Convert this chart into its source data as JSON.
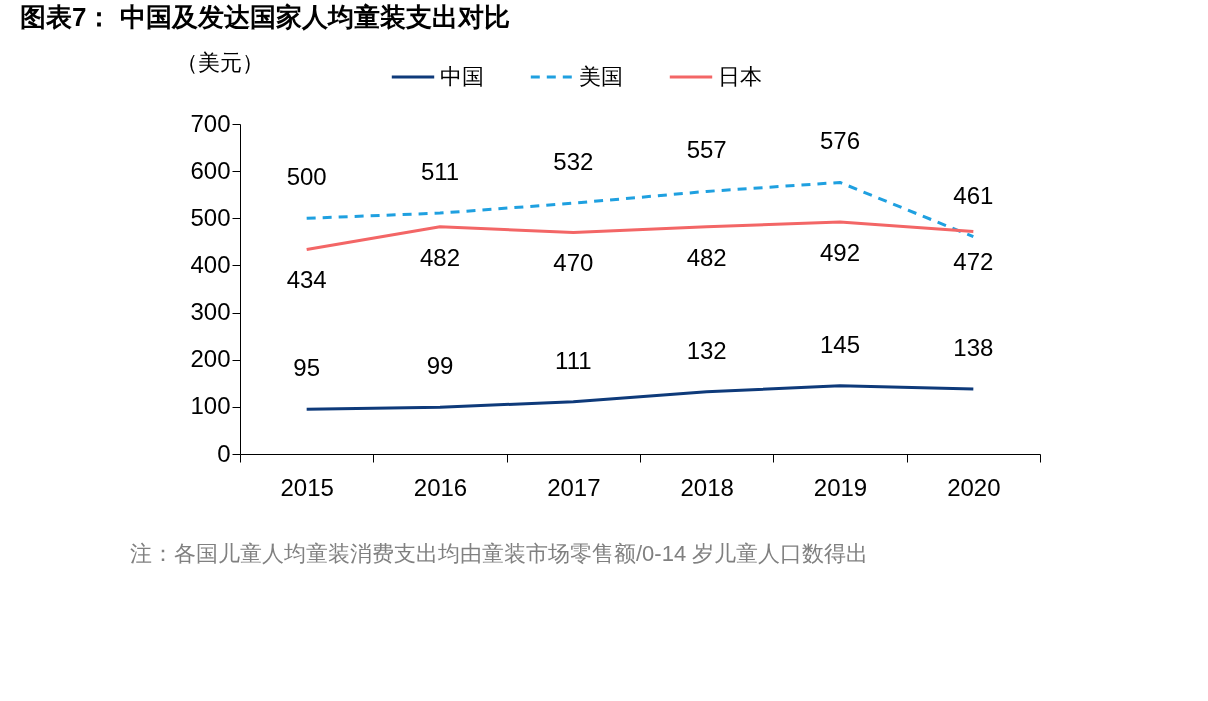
{
  "chart_data": {
    "type": "line",
    "title": "图表7：  中国及发达国家人均童装支出对比",
    "ylabel": "（美元）",
    "categories": [
      "2015",
      "2016",
      "2017",
      "2018",
      "2019",
      "2020"
    ],
    "series": [
      {
        "name": "中国",
        "color": "#0e3a7a",
        "line_style": "solid",
        "values": [
          95,
          99,
          111,
          132,
          145,
          138
        ]
      },
      {
        "name": "美国",
        "color": "#1fa0e0",
        "line_style": "dashed",
        "values": [
          500,
          511,
          532,
          557,
          576,
          461
        ]
      },
      {
        "name": "日本",
        "color": "#f36666",
        "line_style": "solid",
        "values": [
          434,
          482,
          470,
          482,
          492,
          472
        ]
      }
    ],
    "ylim": [
      0,
      700
    ],
    "yticks": [
      0,
      100,
      200,
      300,
      400,
      500,
      600,
      700
    ],
    "grid": false,
    "legend": "top",
    "data_labels": true,
    "marker": "none",
    "annotations": [
      "注：各国儿童人均童装消费支出均由童装市场零售额/0-14 岁儿童人口数得出"
    ]
  }
}
